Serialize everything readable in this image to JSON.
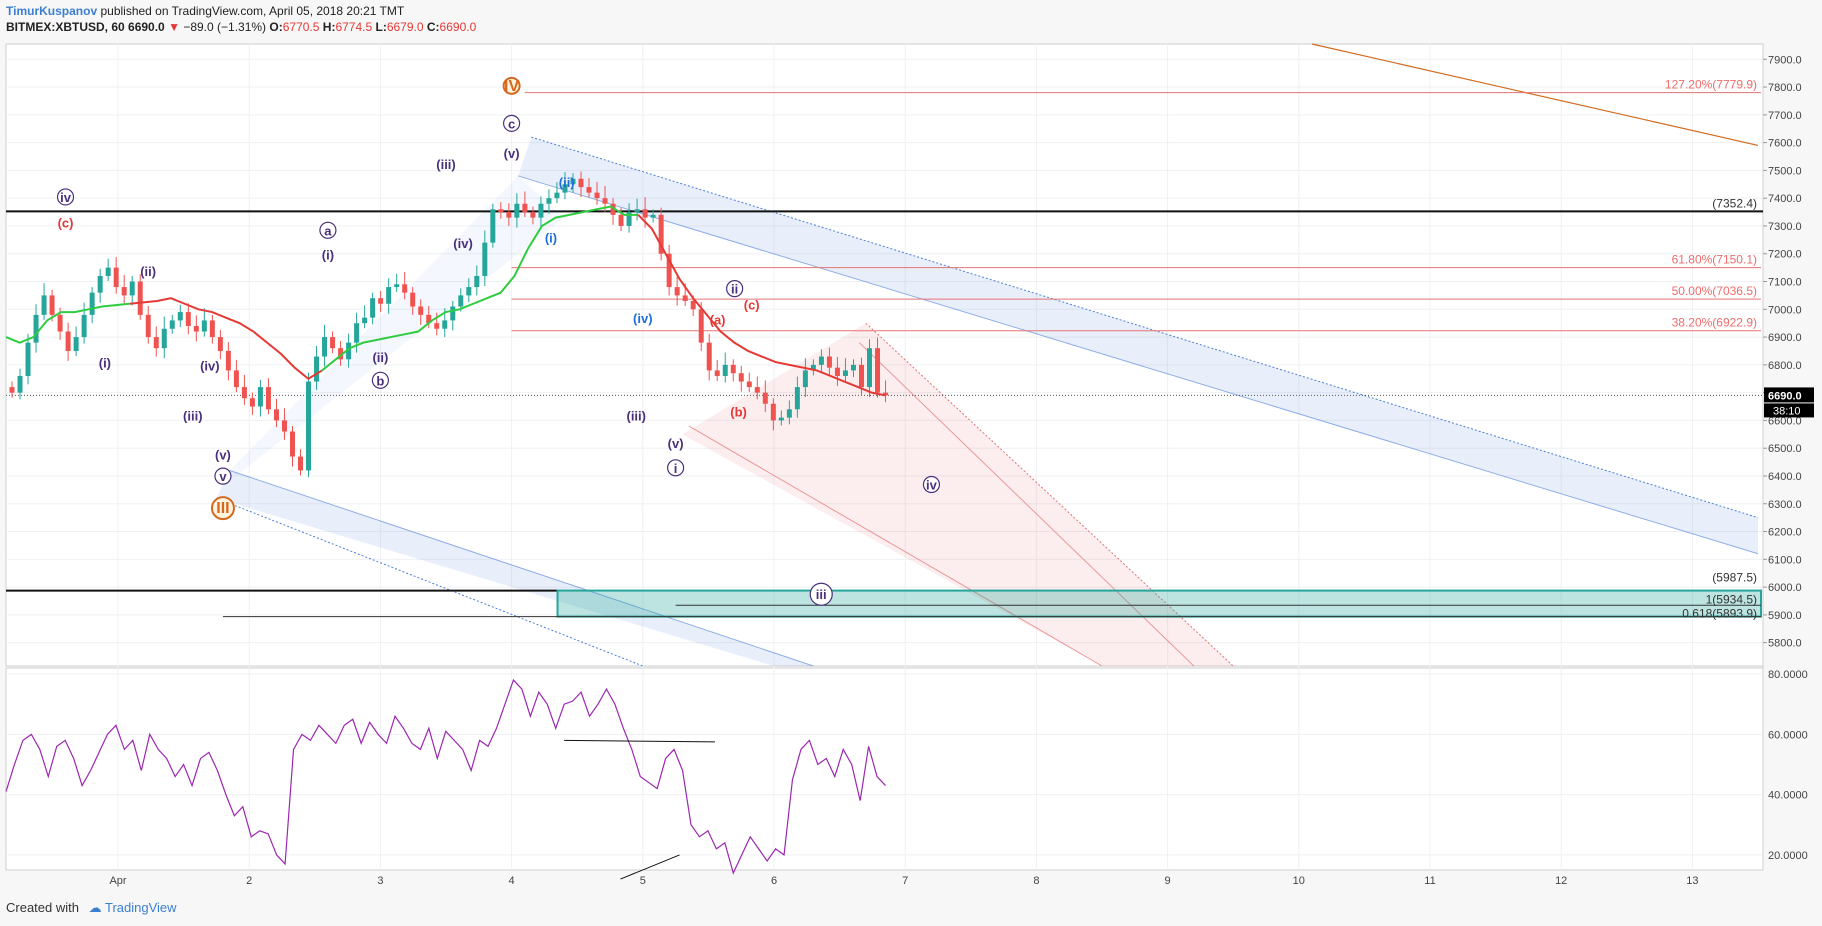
{
  "header": {
    "author": "TimurKuspanov",
    "published": "published on TradingView.com, April 05, 2018 20:21 TMT",
    "symbol": "BITMEX:XBTUSD, 60",
    "last": "6690.0",
    "change": "−89.0 (−1.31%)",
    "o_label": "O:",
    "o_val": "6770.5",
    "h_label": "H:",
    "h_val": "6774.5",
    "l_label": "L:",
    "l_val": "6679.0",
    "c_label": "C:",
    "c_val": "6690.0"
  },
  "footer": {
    "created": "Created with",
    "brand": "TradingView"
  },
  "colors": {
    "up": "#26a69a",
    "down": "#ef5350",
    "ema_green": "#2ecc40",
    "ema_red": "#e53935",
    "rsi": "#9c27b0",
    "channel_blue": "#4a7fd8",
    "channel_red": "#e57373",
    "fib": "#e57373",
    "zone": "#26a69a",
    "wave_purple": "#6a1b9a",
    "wave_orange": "#d2691e"
  },
  "chart_data": [
    {
      "type": "candlestick",
      "title": "",
      "ylim": [
        5700,
        7950
      ],
      "y_ticks": [
        "7900.0",
        "7800.0",
        "7700.0",
        "7600.0",
        "7500.0",
        "7400.0",
        "7300.0",
        "7200.0",
        "7100.0",
        "7000.0",
        "6900.0",
        "6800.0",
        "6700.0",
        "6600.0",
        "6500.0",
        "6400.0",
        "6300.0",
        "6200.0",
        "6100.0",
        "6000.0",
        "5900.0",
        "5800.0"
      ],
      "x_ticks": [
        "Apr",
        "2",
        "3",
        "4",
        "5",
        "6",
        "7",
        "8",
        "9",
        "10",
        "11",
        "12",
        "13"
      ],
      "last_price_label": "6690.0",
      "countdown_label": "38:10",
      "fib_levels": [
        {
          "label": "127.20%(7779.9)",
          "value": 7779.9
        },
        {
          "label": "61.80%(7150.1)",
          "value": 7150.1
        },
        {
          "label": "50.00%(7036.5)",
          "value": 7036.5
        },
        {
          "label": "38.20%(6922.9)",
          "value": 6922.9
        }
      ],
      "horizontal_levels": [
        {
          "label": "(7352.4)",
          "value": 7352.4
        },
        {
          "label": "(5987.5)",
          "value": 5987.5
        },
        {
          "label": "1(5934.5)",
          "value": 5934.5
        },
        {
          "label": "0.618(5893.9)",
          "value": 5893.9
        }
      ],
      "wave_labels": [
        "IV",
        "c",
        "(v)",
        "(iii)",
        "(ii)",
        "(iv)",
        "(i)",
        "iv",
        "(c)",
        "(ii)",
        "(i)",
        "a",
        "(i)",
        "(iv)",
        "(iii)",
        "(v)",
        "v",
        "III",
        "(ii)",
        "b",
        "(iv)",
        "(iii)",
        "(v)",
        "i",
        "(a)",
        "ii",
        "(c)",
        "(b)",
        "iv",
        "iii"
      ],
      "close_series": [
        6700,
        6760,
        6880,
        6980,
        7050,
        6980,
        6920,
        6850,
        6900,
        6980,
        7060,
        7120,
        7150,
        7080,
        7050,
        7100,
        6980,
        6900,
        6860,
        6930,
        6960,
        6990,
        6940,
        6920,
        6960,
        6900,
        6850,
        6780,
        6720,
        6680,
        6650,
        6720,
        6640,
        6600,
        6560,
        6470,
        6420,
        6740,
        6830,
        6900,
        6860,
        6820,
        6880,
        6950,
        6970,
        7040,
        7020,
        7080,
        7090,
        7060,
        7010,
        6980,
        6950,
        6930,
        6960,
        7010,
        7050,
        7080,
        7120,
        7240,
        7360,
        7350,
        7330,
        7380,
        7350,
        7330,
        7380,
        7400,
        7420,
        7450,
        7470,
        7440,
        7420,
        7400,
        7380,
        7340,
        7300,
        7350,
        7360,
        7330,
        7340,
        7200,
        7080,
        7050,
        7030,
        7000,
        6880,
        6780,
        6760,
        6800,
        6770,
        6740,
        6720,
        6700,
        6660,
        6600,
        6610,
        6640,
        6720,
        6780,
        6800,
        6830,
        6790,
        6760,
        6780,
        6800,
        6720,
        6860,
        6700,
        6690
      ],
      "ema_series": [
        6900,
        6880,
        6900,
        6960,
        6990,
        6990,
        7000,
        7010,
        7015,
        7020,
        7025,
        7030,
        7040,
        7020,
        7000,
        6990,
        6970,
        6950,
        6920,
        6880,
        6840,
        6790,
        6750,
        6780,
        6820,
        6860,
        6880,
        6890,
        6900,
        6910,
        6920,
        6960,
        6990,
        7000,
        7020,
        7040,
        7060,
        7120,
        7220,
        7300,
        7330,
        7340,
        7350,
        7360,
        7370,
        7340,
        7340,
        7290,
        7200,
        7110,
        7040,
        6980,
        6920,
        6880,
        6850,
        6830,
        6810,
        6800,
        6790,
        6780,
        6760,
        6740,
        6720,
        6700,
        6690
      ]
    },
    {
      "type": "line",
      "title": "RSI",
      "ylim": [
        15,
        82
      ],
      "y_ticks": [
        "80.0000",
        "60.0000",
        "40.0000",
        "20.0000"
      ],
      "values": [
        41,
        50,
        58,
        60,
        55,
        46,
        56,
        58,
        52,
        43,
        48,
        54,
        60,
        63,
        55,
        58,
        48,
        60,
        55,
        52,
        46,
        50,
        43,
        52,
        54,
        48,
        40,
        33,
        36,
        26,
        28,
        27,
        20,
        17,
        55,
        60,
        58,
        63,
        60,
        57,
        63,
        65,
        57,
        64,
        60,
        57,
        66,
        62,
        57,
        55,
        62,
        52,
        61,
        58,
        55,
        48,
        58,
        56,
        62,
        70,
        78,
        75,
        66,
        74,
        70,
        62,
        70,
        71,
        74,
        66,
        70,
        75,
        70,
        62,
        55,
        46,
        44,
        42,
        52,
        55,
        48,
        30,
        26,
        28,
        22,
        24,
        14,
        20,
        26,
        22,
        18,
        22,
        20,
        45,
        55,
        58,
        50,
        52,
        46,
        55,
        50,
        38,
        56,
        46,
        43
      ]
    }
  ]
}
